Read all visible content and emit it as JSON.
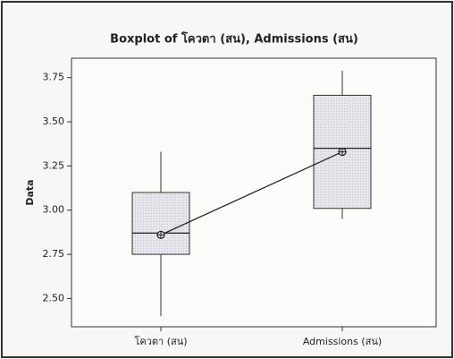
{
  "chart_data": {
    "type": "box",
    "title": "Boxplot of โควตา (สน), Admissions (สน)",
    "y_label": "Data",
    "categories": [
      "โควตา (สน)",
      "Admissions (สน)"
    ],
    "min": [
      2.4,
      2.95
    ],
    "q1": [
      2.75,
      3.01
    ],
    "median": [
      2.87,
      3.35
    ],
    "q3": [
      3.1,
      3.65
    ],
    "max": [
      3.33,
      3.79
    ],
    "mean": [
      2.86,
      3.33
    ],
    "connect_means": true,
    "color": "#e6e6ec",
    "ylim": [
      2.34,
      3.86
    ],
    "yticks": [
      {
        "value": 2.5,
        "label": "2.50"
      },
      2.75,
      {
        "value": 3,
        "label": "3.00"
      },
      3.25,
      {
        "value": 3.5,
        "label": "3.50"
      },
      3.75
    ]
  }
}
